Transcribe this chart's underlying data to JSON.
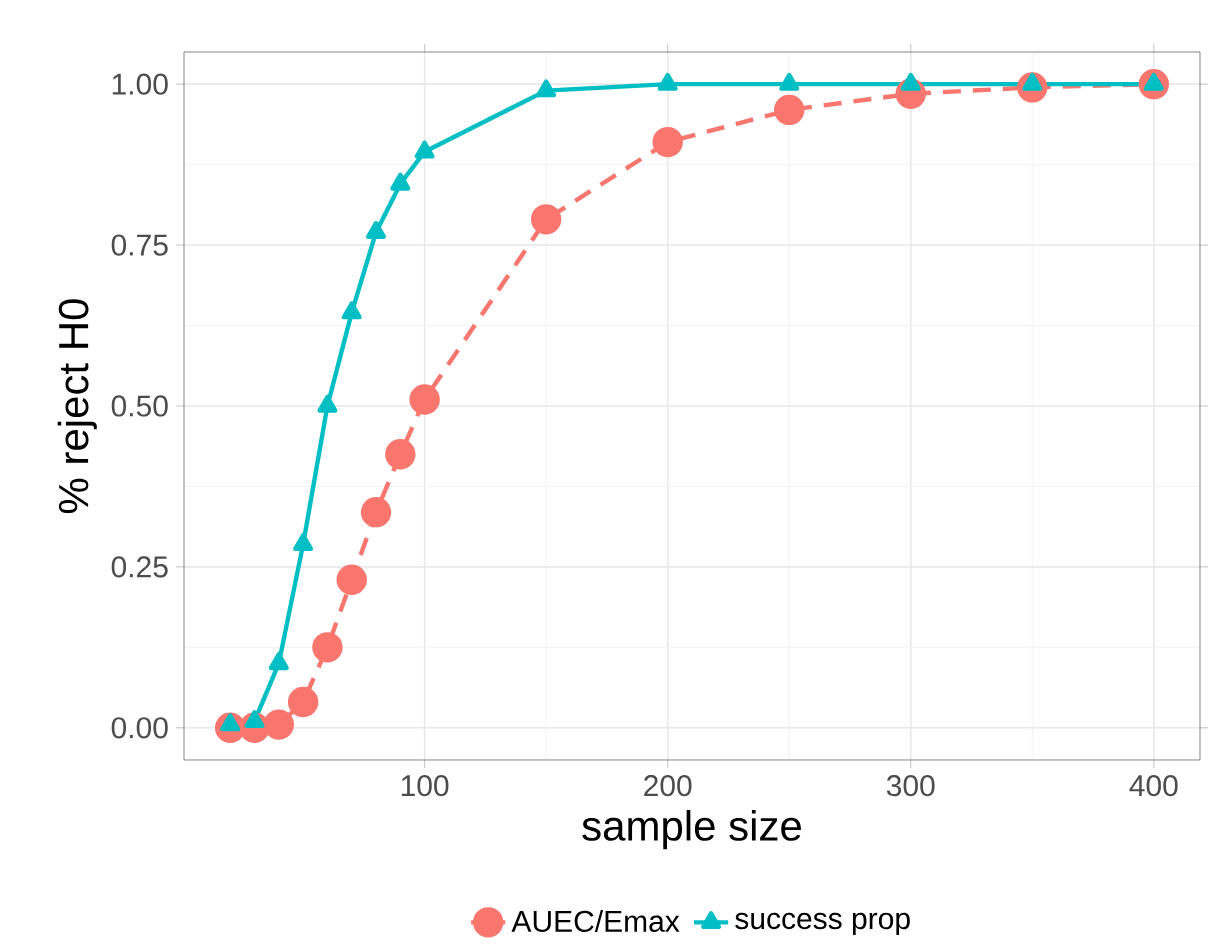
{
  "chart_data": {
    "type": "line",
    "xlabel": "sample size",
    "ylabel": "% reject H0",
    "x": [
      20,
      30,
      40,
      50,
      60,
      70,
      80,
      90,
      100,
      150,
      200,
      250,
      300,
      350,
      400
    ],
    "series": [
      {
        "name": "AUEC/Emax",
        "color": "#f8766d",
        "marker": "circle",
        "line_style": "dashed",
        "values": [
          0,
          0,
          0.005,
          0.04,
          0.125,
          0.23,
          0.335,
          0.425,
          0.51,
          0.79,
          0.91,
          0.96,
          0.985,
          0.995,
          1.0
        ]
      },
      {
        "name": "success prop",
        "color": "#00bfc4",
        "marker": "triangle",
        "line_style": "solid",
        "values": [
          0.005,
          0.01,
          0.1,
          0.285,
          0.5,
          0.645,
          0.77,
          0.845,
          0.895,
          0.99,
          1.0,
          1.0,
          1.0,
          1.0,
          1.0
        ]
      }
    ],
    "xlim": [
      1,
      419
    ],
    "xticks": [
      100,
      200,
      300,
      400
    ],
    "ylim": [
      -0.05,
      1.05
    ],
    "yticks": [
      {
        "value": 0,
        "label": "0.00"
      },
      {
        "value": 0.25,
        "label": "0.25"
      },
      {
        "value": 0.5,
        "label": "0.50"
      },
      {
        "value": 0.75,
        "label": "0.75"
      },
      {
        "value": 1.0,
        "label": "1.00"
      }
    ],
    "grid": true,
    "legend": "bottom"
  }
}
